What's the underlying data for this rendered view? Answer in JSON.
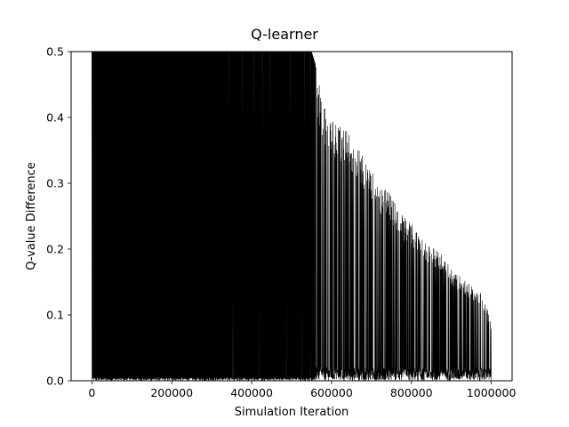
{
  "chart_data": {
    "type": "line",
    "title": "Q-learner",
    "xlabel": "Simulation Iteration",
    "ylabel": "Q-value Difference",
    "xlim": [
      -52000,
      1052000
    ],
    "ylim": [
      0,
      0.5
    ],
    "xticks": [
      0,
      200000,
      400000,
      600000,
      800000,
      1000000
    ],
    "xtick_labels": [
      "0",
      "200000",
      "400000",
      "600000",
      "800000",
      "1000000"
    ],
    "yticks": [
      0.0,
      0.1,
      0.2,
      0.3,
      0.4,
      0.5
    ],
    "ytick_labels": [
      "0.0",
      "0.1",
      "0.2",
      "0.3",
      "0.4",
      "0.5"
    ],
    "grid": false,
    "legend": "none",
    "line_color": "#000000",
    "series": [
      {
        "x": [
          0,
          50000,
          100000,
          150000,
          200000,
          250000,
          300000,
          350000,
          400000,
          430000,
          460000,
          490000,
          520000,
          550000,
          560000,
          580000,
          600000,
          620000,
          640000,
          660000,
          680000,
          700000,
          720000,
          740000,
          760000,
          780000,
          800000,
          820000,
          840000,
          860000,
          880000,
          900000,
          920000,
          940000,
          960000,
          980000,
          1000000
        ],
        "envelope_max": [
          0.5,
          0.5,
          0.5,
          0.5,
          0.5,
          0.5,
          0.5,
          0.5,
          0.5,
          0.5,
          0.5,
          0.5,
          0.5,
          0.5,
          0.48,
          0.42,
          0.4,
          0.39,
          0.38,
          0.36,
          0.34,
          0.32,
          0.3,
          0.29,
          0.27,
          0.25,
          0.24,
          0.22,
          0.21,
          0.2,
          0.19,
          0.17,
          0.16,
          0.15,
          0.14,
          0.13,
          0.09
        ],
        "envelope_min": [
          0.0,
          0.0,
          0.0,
          0.0,
          0.0,
          0.0,
          0.0,
          0.0,
          0.0,
          0.0,
          0.0,
          0.0,
          0.0,
          0.0,
          0.0,
          0.0,
          0.0,
          0.0,
          0.0,
          0.0,
          0.0,
          0.0,
          0.0,
          0.0,
          0.0,
          0.0,
          0.0,
          0.0,
          0.0,
          0.0,
          0.0,
          0.0,
          0.0,
          0.0,
          0.0,
          0.0,
          0.0
        ]
      }
    ]
  }
}
